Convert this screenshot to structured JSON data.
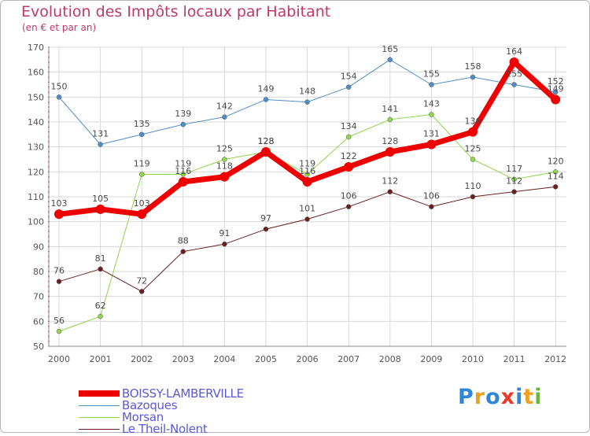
{
  "header": {
    "title": "Evolution des Impôts locaux par Habitant",
    "subtitle": "(en € et par an)"
  },
  "logo": {
    "text": "Proxiti",
    "letters": [
      "P",
      "r",
      "o",
      "x",
      "i",
      "t",
      "i"
    ],
    "colors": [
      "#2e86d6",
      "#f0a020",
      "#2e86d6",
      "#e83a2a",
      "#2e86d6",
      "#f0a020",
      "#66bb33"
    ]
  },
  "chart_data": {
    "type": "line",
    "title": "Evolution des Impôts locaux par Habitant",
    "subtitle": "(en € et par an)",
    "xlabel": "",
    "ylabel": "",
    "ylim": [
      50,
      170
    ],
    "yticks": [
      50,
      60,
      70,
      80,
      90,
      100,
      110,
      120,
      130,
      140,
      150,
      160,
      170
    ],
    "grid": true,
    "legend_position": "bottom-left",
    "x": [
      2000,
      2001,
      2002,
      2003,
      2004,
      2005,
      2006,
      2007,
      2008,
      2009,
      2010,
      2011,
      2012
    ],
    "series": [
      {
        "name": "Bazoques",
        "color": "#4f8fc9",
        "width": 1,
        "values": [
          150,
          131,
          135,
          139,
          142,
          149,
          148,
          154,
          165,
          155,
          158,
          155,
          152
        ]
      },
      {
        "name": "Morsan",
        "color": "#8fd64a",
        "width": 1,
        "values": [
          56,
          62,
          119,
          119,
          125,
          128,
          119,
          134,
          141,
          143,
          125,
          117,
          120
        ]
      },
      {
        "name": "Le Theil-Nolent",
        "color": "#6b1f1f",
        "width": 1,
        "values": [
          76,
          81,
          72,
          88,
          91,
          97,
          101,
          106,
          112,
          106,
          110,
          112,
          114
        ]
      },
      {
        "name": "BOISSY-LAMBERVILLE",
        "color": "#ee0000",
        "width": 7,
        "values": [
          103,
          105,
          103,
          116,
          118,
          128,
          116,
          122,
          128,
          131,
          136,
          164,
          149
        ]
      }
    ],
    "legend_order": [
      "BOISSY-LAMBERVILLE",
      "Bazoques",
      "Morsan",
      "Le Theil-Nolent"
    ]
  }
}
